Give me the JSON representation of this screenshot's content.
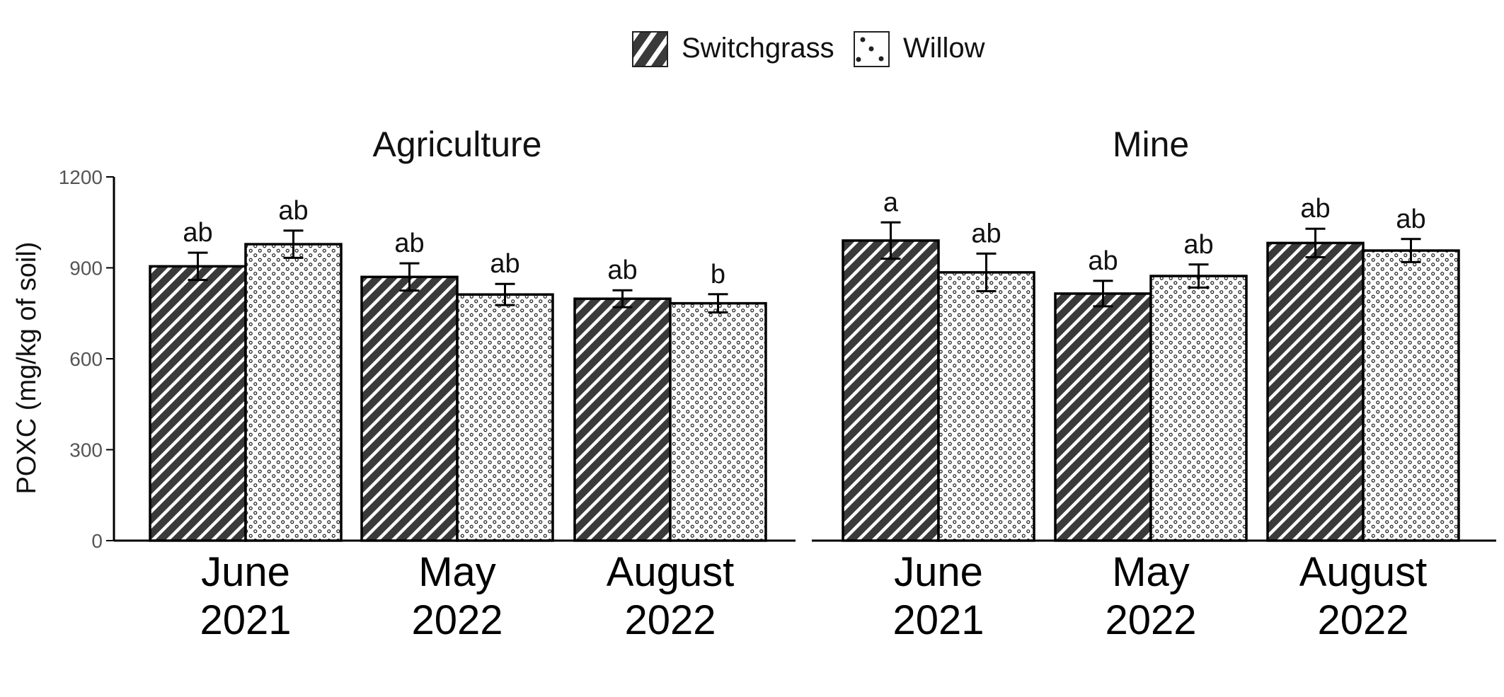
{
  "chart_data": {
    "type": "bar",
    "ylabel": "POXC (mg/kg of soil)",
    "ylim": [
      0,
      1200
    ],
    "yticks": [
      "0",
      "300",
      "600",
      "900",
      "1200"
    ],
    "legend_position": "top-center",
    "series": [
      {
        "name": "Switchgrass",
        "pattern": "diagonal-stripes",
        "fill": "#3a3a3a"
      },
      {
        "name": "Willow",
        "pattern": "dots",
        "fill": "#ffffff"
      }
    ],
    "categories": [
      {
        "line1": "June",
        "line2": "2021"
      },
      {
        "line1": "May",
        "line2": "2022"
      },
      {
        "line1": "August",
        "line2": "2022"
      }
    ],
    "panels": [
      {
        "title": "Agriculture",
        "bars": [
          [
            {
              "value": 905,
              "err": 45,
              "letter": "ab"
            },
            {
              "value": 978,
              "err": 45,
              "letter": "ab"
            }
          ],
          [
            {
              "value": 870,
              "err": 45,
              "letter": "ab"
            },
            {
              "value": 812,
              "err": 35,
              "letter": "ab"
            }
          ],
          [
            {
              "value": 798,
              "err": 28,
              "letter": "ab"
            },
            {
              "value": 783,
              "err": 30,
              "letter": "b"
            }
          ]
        ]
      },
      {
        "title": "Mine",
        "bars": [
          [
            {
              "value": 990,
              "err": 60,
              "letter": "a"
            },
            {
              "value": 885,
              "err": 62,
              "letter": "ab"
            }
          ],
          [
            {
              "value": 815,
              "err": 42,
              "letter": "ab"
            },
            {
              "value": 873,
              "err": 38,
              "letter": "ab"
            }
          ],
          [
            {
              "value": 982,
              "err": 47,
              "letter": "ab"
            },
            {
              "value": 957,
              "err": 38,
              "letter": "ab"
            }
          ]
        ]
      }
    ]
  }
}
